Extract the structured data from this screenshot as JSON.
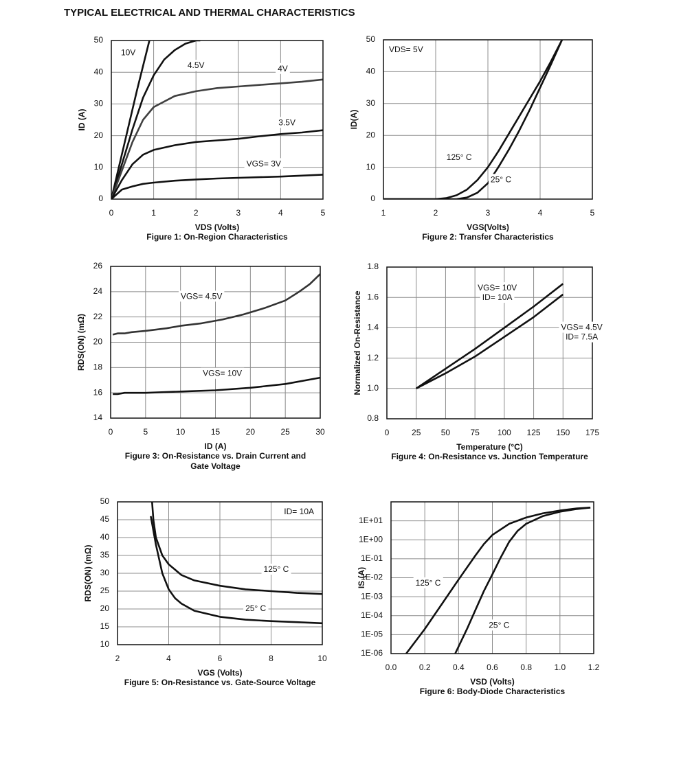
{
  "title": "TYPICAL ELECTRICAL AND THERMAL CHARACTERISTICS",
  "chart_data": [
    {
      "type": "line",
      "caption": "Figure 1: On-Region Characteristics",
      "xlabel": "VDS (Volts)",
      "ylabel": "ID (A)",
      "xlim": [
        0,
        5
      ],
      "xticks": [
        0,
        1,
        2,
        3,
        4,
        5
      ],
      "ylim": [
        0,
        50
      ],
      "yticks": [
        0,
        10,
        20,
        30,
        40,
        50
      ],
      "grid": true,
      "series": [
        {
          "name": "10V",
          "color": "#111111",
          "x": [
            0,
            0.3,
            0.6,
            0.9
          ],
          "values": [
            0,
            17,
            34,
            50
          ]
        },
        {
          "name": "4.5V",
          "color": "#111111",
          "x": [
            0,
            0.25,
            0.5,
            0.75,
            1,
            1.25,
            1.5,
            1.75,
            2,
            2.1
          ],
          "values": [
            0,
            11,
            22,
            32,
            39,
            44,
            47,
            49,
            50,
            50
          ]
        },
        {
          "name": "4V",
          "color": "#404040",
          "x": [
            0,
            0.25,
            0.5,
            0.75,
            1,
            1.5,
            2,
            2.5,
            3,
            3.5,
            4,
            4.5,
            5
          ],
          "values": [
            0,
            9,
            18,
            25,
            29,
            32.5,
            34,
            35,
            35.5,
            36,
            36.5,
            37,
            37.7
          ]
        },
        {
          "name": "3.5V",
          "color": "#111111",
          "x": [
            0,
            0.25,
            0.5,
            0.75,
            1,
            1.5,
            2,
            2.5,
            3,
            3.5,
            4,
            4.5,
            5
          ],
          "values": [
            0,
            6,
            11,
            14,
            15.5,
            17,
            18,
            18.5,
            19,
            19.8,
            20.5,
            21,
            21.7
          ]
        },
        {
          "name": "VGS= 3V",
          "color": "#111111",
          "x": [
            0,
            0.25,
            0.5,
            0.75,
            1,
            1.5,
            2,
            2.5,
            3,
            3.5,
            4,
            4.5,
            5
          ],
          "values": [
            0,
            3,
            4,
            4.8,
            5.2,
            5.8,
            6.2,
            6.5,
            6.7,
            6.9,
            7.1,
            7.4,
            7.7
          ]
        }
      ]
    },
    {
      "type": "line",
      "caption": "Figure 2: Transfer Characteristics",
      "xlabel": "VGS(Volts)",
      "ylabel": "ID(A)",
      "annotation": "VDS= 5V",
      "xlim": [
        1,
        5
      ],
      "xticks": [
        1,
        2,
        3,
        4,
        5
      ],
      "ylim": [
        0,
        50
      ],
      "yticks": [
        0,
        10,
        20,
        30,
        40,
        50
      ],
      "grid": true,
      "series": [
        {
          "name": "125° C",
          "color": "#111111",
          "x": [
            1,
            2,
            2.2,
            2.4,
            2.6,
            2.8,
            3,
            3.2,
            3.4,
            3.6,
            3.8,
            4,
            4.2,
            4.42
          ],
          "values": [
            0,
            0,
            0.3,
            1.2,
            3,
            6,
            10,
            15,
            20.5,
            26,
            31.5,
            37,
            43,
            50
          ]
        },
        {
          "name": "25° C",
          "color": "#111111",
          "x": [
            1,
            2.4,
            2.6,
            2.8,
            3,
            3.2,
            3.4,
            3.6,
            3.8,
            4,
            4.2,
            4.42
          ],
          "values": [
            0,
            0,
            0.5,
            2,
            5,
            10,
            15.5,
            21.5,
            28,
            35,
            42,
            50
          ]
        }
      ]
    },
    {
      "type": "line",
      "caption": [
        "Figure 3: On-Resistance vs. Drain Current and",
        "Gate Voltage"
      ],
      "xlabel": "ID (A)",
      "ylabel": "RDS(ON) (mΩ)",
      "xlim": [
        0,
        30
      ],
      "xticks": [
        0,
        5,
        10,
        15,
        20,
        25,
        30
      ],
      "ylim": [
        14,
        26
      ],
      "yticks": [
        14,
        16,
        18,
        20,
        22,
        24,
        26
      ],
      "grid": true,
      "series": [
        {
          "name": "VGS= 4.5V",
          "color": "#333333",
          "x": [
            0.3,
            1,
            2,
            3,
            5,
            8,
            10,
            13,
            16,
            19,
            22,
            25,
            27,
            28.5,
            30
          ],
          "values": [
            20.6,
            20.7,
            20.7,
            20.8,
            20.9,
            21.1,
            21.3,
            21.5,
            21.8,
            22.2,
            22.7,
            23.3,
            24,
            24.6,
            25.4
          ]
        },
        {
          "name": "VGS= 10V",
          "color": "#111111",
          "x": [
            0.3,
            1,
            2,
            5,
            10,
            15,
            20,
            25,
            30
          ],
          "values": [
            15.9,
            15.9,
            16,
            16,
            16.1,
            16.2,
            16.4,
            16.7,
            17.2
          ]
        }
      ]
    },
    {
      "type": "line",
      "caption": "Figure 4: On-Resistance vs. Junction Temperature",
      "xlabel": "Temperature (°C)",
      "ylabel": "Normalized On-Resistance",
      "xlim": [
        0,
        175
      ],
      "xticks": [
        0,
        25,
        50,
        75,
        100,
        125,
        150,
        175
      ],
      "ylim": [
        0.8,
        1.8
      ],
      "yticks": [
        0.8,
        {
          "value": 1,
          "label": "1.0"
        },
        1.2,
        1.4,
        1.6,
        1.8
      ],
      "grid": true,
      "series": [
        {
          "name": [
            "VGS= 10V",
            "ID= 10A"
          ],
          "color": "#111111",
          "x": [
            25,
            50,
            75,
            100,
            125,
            150
          ],
          "values": [
            1,
            1.13,
            1.26,
            1.4,
            1.54,
            1.69
          ]
        },
        {
          "name": [
            "VGS= 4.5V",
            "ID= 7.5A"
          ],
          "color": "#111111",
          "x": [
            25,
            50,
            75,
            100,
            125,
            150
          ],
          "values": [
            1,
            1.1,
            1.21,
            1.34,
            1.47,
            1.62
          ]
        }
      ]
    },
    {
      "type": "line",
      "caption": "Figure 5: On-Resistance vs. Gate-Source Voltage",
      "xlabel": "VGS (Volts)",
      "ylabel": "RDS(ON) (mΩ)",
      "annotation": "ID= 10A",
      "xlim": [
        2,
        10
      ],
      "xticks": [
        2,
        4,
        6,
        8,
        10
      ],
      "ylim": [
        10,
        50
      ],
      "yticks": [
        10,
        15,
        20,
        25,
        30,
        35,
        40,
        45,
        50
      ],
      "grid": true,
      "series": [
        {
          "name": "125° C",
          "color": "#111111",
          "x": [
            3.35,
            3.4,
            3.5,
            3.75,
            4,
            4.5,
            5,
            6,
            7,
            8,
            9,
            10
          ],
          "values": [
            50,
            45,
            40,
            35,
            32.5,
            29.5,
            28,
            26.5,
            25.5,
            25,
            24.5,
            24.2
          ]
        },
        {
          "name": "25° C",
          "color": "#111111",
          "x": [
            3.3,
            3.5,
            3.75,
            4,
            4.25,
            4.5,
            5,
            6,
            7,
            8,
            9,
            10
          ],
          "values": [
            46,
            38,
            30,
            25.5,
            23,
            21.5,
            19.5,
            17.8,
            17,
            16.6,
            16.3,
            16
          ]
        }
      ]
    },
    {
      "type": "line",
      "caption": "Figure 6: Body-Diode Characteristics",
      "xlabel": "VSD (Volts)",
      "ylabel": "IS (A)",
      "log": true,
      "xlim": [
        0,
        1.2
      ],
      "xticks": [
        {
          "value": 0,
          "label": "0.0"
        },
        0.2,
        0.4,
        0.6,
        0.8,
        {
          "value": 1,
          "label": "1.0"
        },
        1.2
      ],
      "ylim": [
        1e-06,
        100
      ],
      "yticks": [
        {
          "value": 1e-06,
          "label": "1E-06"
        },
        {
          "value": 1e-05,
          "label": "1E-05"
        },
        {
          "value": 0.0001,
          "label": "1E-04"
        },
        {
          "value": 0.001,
          "label": "1E-03"
        },
        {
          "value": 0.01,
          "label": "1E-02"
        },
        {
          "value": 0.1,
          "label": "1E-01"
        },
        {
          "value": 1,
          "label": "1E+00"
        },
        {
          "value": 10,
          "label": "1E+01"
        }
      ],
      "grid": true,
      "series": [
        {
          "name": "125° C",
          "color": "#111111",
          "x": [
            0.09,
            0.2,
            0.3,
            0.4,
            0.5,
            0.55,
            0.6,
            0.7,
            0.8,
            0.9,
            1.0,
            1.1,
            1.18
          ],
          "values": [
            1e-06,
            2e-05,
            0.0004,
            0.008,
            0.15,
            0.6,
            1.8,
            7,
            15,
            25,
            35,
            45,
            50
          ]
        },
        {
          "name": "25° C",
          "color": "#111111",
          "x": [
            0.38,
            0.45,
            0.5,
            0.55,
            0.6,
            0.65,
            0.7,
            0.75,
            0.8,
            0.9,
            1.0,
            1.1,
            1.18
          ],
          "values": [
            1e-06,
            2e-05,
            0.0002,
            0.002,
            0.015,
            0.12,
            0.8,
            3,
            7,
            18,
            30,
            42,
            50
          ]
        }
      ]
    }
  ]
}
